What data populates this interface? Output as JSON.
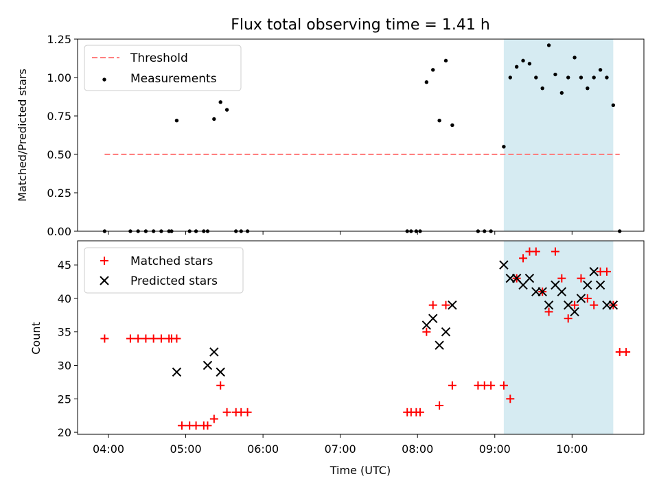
{
  "chart_data": [
    {
      "type": "scatter",
      "title": "Flux total observing time = 1.41 h",
      "ylabel": "Matched/Predicted stars",
      "xlabel": "",
      "xlim_hours": [
        3.6,
        10.93
      ],
      "ylim": [
        0,
        1.25
      ],
      "x_ticks": [
        "04:00",
        "05:00",
        "06:00",
        "07:00",
        "08:00",
        "09:00",
        "10:00"
      ],
      "y_ticks": [
        "0.00",
        "0.25",
        "0.50",
        "0.75",
        "1.00",
        "1.25"
      ],
      "legend": {
        "placement": "upper-left",
        "entries": [
          "Threshold",
          "Measurements"
        ]
      },
      "shaded_span": {
        "from": "09:07",
        "to": "10:32",
        "color": "#add8e6"
      },
      "threshold": {
        "name": "Threshold",
        "value": 0.5,
        "from": "03:57",
        "to": "10:37",
        "color": "#ff7f7f"
      },
      "series": [
        {
          "name": "Measurements",
          "color": "#000000",
          "x": [
            "03:57",
            "04:17",
            "04:23",
            "04:29",
            "04:35",
            "04:41",
            "04:47",
            "04:49",
            "04:53",
            "05:03",
            "05:08",
            "05:14",
            "05:17",
            "05:22",
            "05:27",
            "05:32",
            "05:39",
            "05:43",
            "05:48",
            "07:52",
            "07:55",
            "07:59",
            "08:02",
            "08:07",
            "08:12",
            "08:17",
            "08:22",
            "08:27",
            "08:47",
            "08:52",
            "08:57",
            "09:07",
            "09:12",
            "09:17",
            "09:22",
            "09:27",
            "09:32",
            "09:37",
            "09:42",
            "09:47",
            "09:52",
            "09:57",
            "10:02",
            "10:07",
            "10:12",
            "10:17",
            "10:22",
            "10:27",
            "10:32",
            "10:37"
          ],
          "y": [
            0.0,
            0.0,
            0.0,
            0.0,
            0.0,
            0.0,
            0.0,
            0.0,
            0.72,
            0.0,
            0.0,
            0.0,
            0.0,
            0.73,
            0.84,
            0.79,
            0.0,
            0.0,
            0.0,
            0.0,
            0.0,
            0.0,
            0.0,
            0.97,
            1.05,
            0.72,
            1.11,
            0.69,
            0.0,
            0.0,
            0.0,
            0.55,
            1.0,
            1.07,
            1.11,
            1.09,
            1.0,
            0.93,
            1.21,
            1.02,
            0.9,
            1.0,
            1.13,
            1.0,
            0.93,
            1.0,
            1.05,
            1.0,
            0.82,
            0.0
          ]
        }
      ]
    },
    {
      "type": "scatter",
      "title": "",
      "ylabel": "Count",
      "xlabel": "Time (UTC)",
      "xlim_hours": [
        3.6,
        10.93
      ],
      "ylim": [
        19.7,
        48.6
      ],
      "x_ticks": [
        "04:00",
        "05:00",
        "06:00",
        "07:00",
        "08:00",
        "09:00",
        "10:00"
      ],
      "y_ticks": [
        "20",
        "25",
        "30",
        "35",
        "40",
        "45"
      ],
      "legend": {
        "placement": "upper-left",
        "entries": [
          "Matched stars",
          "Predicted stars"
        ]
      },
      "shaded_span": {
        "from": "09:07",
        "to": "10:32",
        "color": "#add8e6"
      },
      "series": [
        {
          "name": "Matched stars",
          "marker": "plus",
          "color": "#ff0000",
          "x": [
            "03:57",
            "04:17",
            "04:23",
            "04:29",
            "04:35",
            "04:41",
            "04:47",
            "04:49",
            "04:53",
            "04:57",
            "05:03",
            "05:08",
            "05:14",
            "05:17",
            "05:22",
            "05:27",
            "05:32",
            "05:39",
            "05:43",
            "05:48",
            "07:52",
            "07:55",
            "07:59",
            "08:02",
            "08:07",
            "08:12",
            "08:17",
            "08:22",
            "08:27",
            "08:47",
            "08:52",
            "08:57",
            "09:07",
            "09:12",
            "09:17",
            "09:22",
            "09:27",
            "09:32",
            "09:37",
            "09:42",
            "09:47",
            "09:52",
            "09:57",
            "10:02",
            "10:07",
            "10:12",
            "10:17",
            "10:22",
            "10:27",
            "10:32",
            "10:37",
            "10:42"
          ],
          "y": [
            34,
            34,
            34,
            34,
            34,
            34,
            34,
            34,
            34,
            21,
            21,
            21,
            21,
            21,
            22,
            27,
            23,
            23,
            23,
            23,
            23,
            23,
            23,
            23,
            35,
            39,
            24,
            39,
            27,
            27,
            27,
            27,
            27,
            25,
            43,
            46,
            47,
            47,
            41,
            38,
            47,
            43,
            37,
            39,
            43,
            40,
            39,
            44,
            44,
            39,
            32,
            32
          ]
        },
        {
          "name": "Predicted stars",
          "marker": "x",
          "color": "#000000",
          "x": [
            "04:53",
            "05:17",
            "05:22",
            "05:27",
            "08:07",
            "08:12",
            "08:17",
            "08:22",
            "08:27",
            "09:07",
            "09:12",
            "09:17",
            "09:22",
            "09:27",
            "09:32",
            "09:37",
            "09:42",
            "09:47",
            "09:52",
            "09:57",
            "10:02",
            "10:07",
            "10:12",
            "10:17",
            "10:22",
            "10:27",
            "10:32"
          ],
          "y": [
            29,
            30,
            32,
            29,
            36,
            37,
            33,
            35,
            39,
            45,
            43,
            43,
            42,
            43,
            41,
            41,
            39,
            42,
            41,
            39,
            38,
            40,
            42,
            44,
            42,
            39,
            39
          ]
        }
      ]
    }
  ]
}
